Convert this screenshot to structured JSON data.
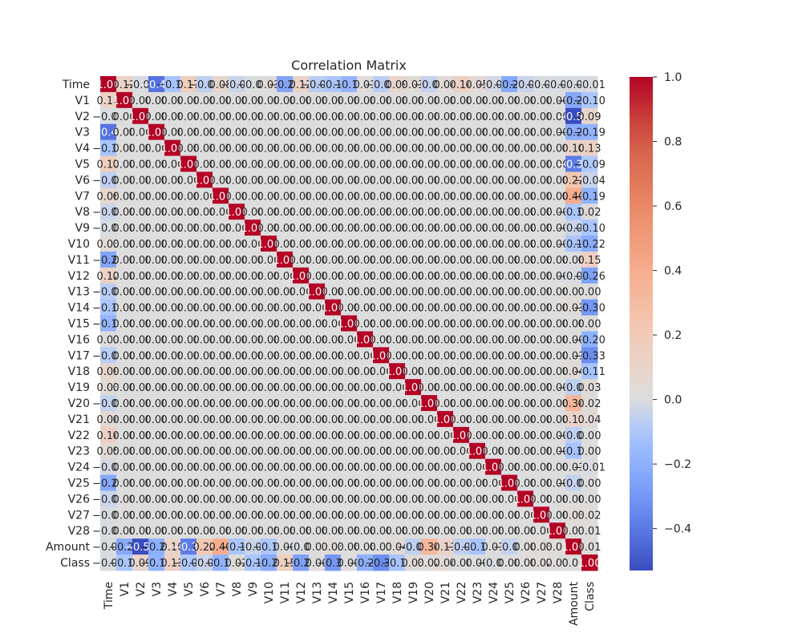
{
  "chart_data": {
    "type": "heatmap",
    "title": "Correlation Matrix",
    "labels": [
      "Time",
      "V1",
      "V2",
      "V3",
      "V4",
      "V5",
      "V6",
      "V7",
      "V8",
      "V9",
      "V10",
      "V11",
      "V12",
      "V13",
      "V14",
      "V15",
      "V16",
      "V17",
      "V18",
      "V19",
      "V20",
      "V21",
      "V22",
      "V23",
      "V24",
      "V25",
      "V26",
      "V27",
      "V28",
      "Amount",
      "Class"
    ],
    "matrix": [
      [
        1.0,
        0.12,
        -0.01,
        -0.42,
        -0.11,
        0.17,
        -0.06,
        0.08,
        -0.04,
        -0.01,
        0.03,
        -0.25,
        0.12,
        -0.07,
        -0.1,
        -0.18,
        0.01,
        -0.07,
        0.09,
        0.03,
        -0.05,
        0.04,
        0.14,
        0.05,
        -0.02,
        -0.23,
        -0.04,
        -0.01,
        -0.01,
        -0.01,
        -0.01
      ],
      [
        0.12,
        1.0,
        0.0,
        0.0,
        0.0,
        0.0,
        0.0,
        0.0,
        0.0,
        0.0,
        0.0,
        0.0,
        0.0,
        0.0,
        0.0,
        0.0,
        0.0,
        0.0,
        0.0,
        0.0,
        0.0,
        0.0,
        0.0,
        0.0,
        0.0,
        0.0,
        0.0,
        0.0,
        0.0,
        -0.23,
        -0.1
      ],
      [
        -0.01,
        0.0,
        1.0,
        0.0,
        0.0,
        0.0,
        0.0,
        0.0,
        0.0,
        0.0,
        0.0,
        0.0,
        0.0,
        0.0,
        0.0,
        0.0,
        0.0,
        0.0,
        0.0,
        0.0,
        0.0,
        0.0,
        0.0,
        0.0,
        0.0,
        0.0,
        0.0,
        0.0,
        0.0,
        -0.53,
        0.09
      ],
      [
        -0.42,
        0.0,
        0.0,
        1.0,
        0.0,
        0.0,
        0.0,
        0.0,
        0.0,
        0.0,
        0.0,
        0.0,
        0.0,
        0.0,
        0.0,
        0.0,
        0.0,
        0.0,
        0.0,
        0.0,
        0.0,
        0.0,
        0.0,
        0.0,
        0.0,
        0.0,
        0.0,
        0.0,
        0.0,
        -0.21,
        -0.19
      ],
      [
        -0.11,
        0.0,
        0.0,
        0.0,
        1.0,
        0.0,
        0.0,
        0.0,
        0.0,
        0.0,
        0.0,
        0.0,
        0.0,
        0.0,
        0.0,
        0.0,
        0.0,
        0.0,
        0.0,
        0.0,
        0.0,
        0.0,
        0.0,
        0.0,
        0.0,
        0.0,
        0.0,
        0.0,
        0.0,
        0.1,
        0.13
      ],
      [
        0.17,
        0.0,
        0.0,
        0.0,
        0.0,
        1.0,
        0.0,
        0.0,
        0.0,
        0.0,
        0.0,
        0.0,
        0.0,
        0.0,
        0.0,
        0.0,
        0.0,
        0.0,
        0.0,
        0.0,
        0.0,
        0.0,
        0.0,
        0.0,
        0.0,
        0.0,
        0.0,
        0.0,
        0.0,
        -0.39,
        -0.09
      ],
      [
        -0.06,
        0.0,
        0.0,
        0.0,
        0.0,
        0.0,
        1.0,
        0.0,
        0.0,
        0.0,
        0.0,
        0.0,
        0.0,
        0.0,
        0.0,
        0.0,
        0.0,
        0.0,
        0.0,
        0.0,
        0.0,
        0.0,
        0.0,
        0.0,
        0.0,
        0.0,
        0.0,
        0.0,
        0.0,
        0.22,
        -0.04
      ],
      [
        0.08,
        0.0,
        0.0,
        0.0,
        0.0,
        0.0,
        0.0,
        1.0,
        0.0,
        0.0,
        0.0,
        0.0,
        0.0,
        0.0,
        0.0,
        0.0,
        0.0,
        0.0,
        0.0,
        0.0,
        0.0,
        0.0,
        0.0,
        0.0,
        0.0,
        0.0,
        0.0,
        0.0,
        0.0,
        0.4,
        -0.19
      ],
      [
        -0.04,
        0.0,
        0.0,
        0.0,
        0.0,
        0.0,
        0.0,
        0.0,
        1.0,
        0.0,
        0.0,
        0.0,
        0.0,
        0.0,
        0.0,
        0.0,
        0.0,
        0.0,
        0.0,
        0.0,
        0.0,
        0.0,
        0.0,
        0.0,
        0.0,
        0.0,
        0.0,
        0.0,
        0.0,
        -0.1,
        0.02
      ],
      [
        -0.01,
        0.0,
        0.0,
        0.0,
        0.0,
        0.0,
        0.0,
        0.0,
        0.0,
        1.0,
        0.0,
        0.0,
        0.0,
        0.0,
        0.0,
        0.0,
        0.0,
        0.0,
        0.0,
        0.0,
        0.0,
        0.0,
        0.0,
        0.0,
        0.0,
        0.0,
        0.0,
        0.0,
        0.0,
        -0.04,
        -0.1
      ],
      [
        0.03,
        0.0,
        0.0,
        0.0,
        0.0,
        0.0,
        0.0,
        0.0,
        0.0,
        0.0,
        1.0,
        0.0,
        0.0,
        0.0,
        0.0,
        0.0,
        0.0,
        0.0,
        0.0,
        0.0,
        0.0,
        0.0,
        0.0,
        0.0,
        0.0,
        0.0,
        0.0,
        0.0,
        0.0,
        -0.1,
        -0.22
      ],
      [
        -0.25,
        0.0,
        0.0,
        0.0,
        0.0,
        0.0,
        0.0,
        0.0,
        0.0,
        0.0,
        0.0,
        1.0,
        0.0,
        0.0,
        0.0,
        0.0,
        0.0,
        0.0,
        0.0,
        0.0,
        0.0,
        0.0,
        0.0,
        0.0,
        0.0,
        0.0,
        0.0,
        0.0,
        0.0,
        0.0,
        0.15
      ],
      [
        0.12,
        0.0,
        0.0,
        0.0,
        0.0,
        0.0,
        0.0,
        0.0,
        0.0,
        0.0,
        0.0,
        0.0,
        1.0,
        0.0,
        0.0,
        0.0,
        0.0,
        0.0,
        0.0,
        0.0,
        0.0,
        0.0,
        0.0,
        0.0,
        0.0,
        0.0,
        0.0,
        0.0,
        0.0,
        -0.01,
        -0.26
      ],
      [
        -0.07,
        0.0,
        0.0,
        0.0,
        0.0,
        0.0,
        0.0,
        0.0,
        0.0,
        0.0,
        0.0,
        0.0,
        0.0,
        1.0,
        0.0,
        0.0,
        0.0,
        0.0,
        0.0,
        0.0,
        0.0,
        0.0,
        0.0,
        0.0,
        0.0,
        0.0,
        0.0,
        0.0,
        0.0,
        0.01,
        -0.0
      ],
      [
        -0.1,
        0.0,
        0.0,
        0.0,
        0.0,
        0.0,
        0.0,
        0.0,
        0.0,
        0.0,
        0.0,
        0.0,
        0.0,
        0.0,
        1.0,
        0.0,
        0.0,
        0.0,
        0.0,
        0.0,
        0.0,
        0.0,
        0.0,
        0.0,
        0.0,
        0.0,
        0.0,
        0.0,
        0.0,
        0.03,
        -0.3
      ],
      [
        -0.18,
        0.0,
        0.0,
        0.0,
        0.0,
        0.0,
        0.0,
        0.0,
        0.0,
        0.0,
        0.0,
        0.0,
        0.0,
        0.0,
        0.0,
        1.0,
        0.0,
        0.0,
        0.0,
        0.0,
        0.0,
        0.0,
        0.0,
        0.0,
        0.0,
        0.0,
        0.0,
        0.0,
        0.0,
        -0.0,
        -0.0
      ],
      [
        0.01,
        0.0,
        0.0,
        0.0,
        0.0,
        0.0,
        0.0,
        0.0,
        0.0,
        0.0,
        0.0,
        0.0,
        0.0,
        0.0,
        0.0,
        0.0,
        1.0,
        0.0,
        0.0,
        0.0,
        0.0,
        0.0,
        0.0,
        0.0,
        0.0,
        0.0,
        0.0,
        0.0,
        0.0,
        -0.0,
        -0.2
      ],
      [
        -0.07,
        0.0,
        0.0,
        0.0,
        0.0,
        0.0,
        0.0,
        0.0,
        0.0,
        0.0,
        0.0,
        0.0,
        0.0,
        0.0,
        0.0,
        0.0,
        0.0,
        1.0,
        0.0,
        0.0,
        0.0,
        0.0,
        0.0,
        0.0,
        0.0,
        0.0,
        0.0,
        0.0,
        0.0,
        0.01,
        -0.33
      ],
      [
        0.09,
        0.0,
        0.0,
        0.0,
        0.0,
        0.0,
        0.0,
        0.0,
        0.0,
        0.0,
        0.0,
        0.0,
        0.0,
        0.0,
        0.0,
        0.0,
        0.0,
        0.0,
        1.0,
        0.0,
        0.0,
        0.0,
        0.0,
        0.0,
        0.0,
        0.0,
        0.0,
        0.0,
        0.0,
        0.04,
        -0.11
      ],
      [
        0.03,
        0.0,
        0.0,
        0.0,
        0.0,
        0.0,
        0.0,
        0.0,
        0.0,
        0.0,
        0.0,
        0.0,
        0.0,
        0.0,
        0.0,
        0.0,
        0.0,
        0.0,
        0.0,
        1.0,
        0.0,
        0.0,
        0.0,
        0.0,
        0.0,
        0.0,
        0.0,
        0.0,
        0.0,
        -0.06,
        0.03
      ],
      [
        -0.05,
        0.0,
        0.0,
        0.0,
        0.0,
        0.0,
        0.0,
        0.0,
        0.0,
        0.0,
        0.0,
        0.0,
        0.0,
        0.0,
        0.0,
        0.0,
        0.0,
        0.0,
        0.0,
        0.0,
        1.0,
        0.0,
        0.0,
        0.0,
        0.0,
        0.0,
        0.0,
        0.0,
        0.0,
        0.34,
        0.02
      ],
      [
        0.04,
        0.0,
        0.0,
        0.0,
        0.0,
        0.0,
        0.0,
        0.0,
        0.0,
        0.0,
        0.0,
        0.0,
        0.0,
        0.0,
        0.0,
        0.0,
        0.0,
        0.0,
        0.0,
        0.0,
        0.0,
        1.0,
        0.0,
        0.0,
        0.0,
        0.0,
        0.0,
        0.0,
        0.0,
        0.11,
        0.04
      ],
      [
        0.14,
        0.0,
        0.0,
        0.0,
        0.0,
        0.0,
        0.0,
        0.0,
        0.0,
        0.0,
        0.0,
        0.0,
        0.0,
        0.0,
        0.0,
        0.0,
        0.0,
        0.0,
        0.0,
        0.0,
        0.0,
        0.0,
        1.0,
        0.0,
        0.0,
        0.0,
        0.0,
        0.0,
        0.0,
        -0.06,
        0.0
      ],
      [
        0.05,
        0.0,
        0.0,
        0.0,
        0.0,
        0.0,
        0.0,
        0.0,
        0.0,
        0.0,
        0.0,
        0.0,
        0.0,
        0.0,
        0.0,
        0.0,
        0.0,
        0.0,
        0.0,
        0.0,
        0.0,
        0.0,
        0.0,
        1.0,
        0.0,
        0.0,
        0.0,
        0.0,
        0.0,
        -0.11,
        -0.0
      ],
      [
        -0.02,
        0.0,
        0.0,
        0.0,
        0.0,
        0.0,
        0.0,
        0.0,
        0.0,
        0.0,
        0.0,
        0.0,
        0.0,
        0.0,
        0.0,
        0.0,
        0.0,
        0.0,
        0.0,
        0.0,
        0.0,
        0.0,
        0.0,
        0.0,
        1.0,
        0.0,
        0.0,
        0.0,
        0.0,
        0.01,
        -0.01
      ],
      [
        -0.23,
        0.0,
        0.0,
        0.0,
        0.0,
        0.0,
        0.0,
        0.0,
        0.0,
        0.0,
        0.0,
        0.0,
        0.0,
        0.0,
        0.0,
        0.0,
        0.0,
        0.0,
        0.0,
        0.0,
        0.0,
        0.0,
        0.0,
        0.0,
        0.0,
        1.0,
        0.0,
        0.0,
        0.0,
        -0.05,
        0.0
      ],
      [
        -0.04,
        0.0,
        0.0,
        0.0,
        0.0,
        0.0,
        0.0,
        0.0,
        0.0,
        0.0,
        0.0,
        0.0,
        0.0,
        0.0,
        0.0,
        0.0,
        0.0,
        0.0,
        0.0,
        0.0,
        0.0,
        0.0,
        0.0,
        0.0,
        0.0,
        0.0,
        1.0,
        0.0,
        0.0,
        -0.0,
        0.0
      ],
      [
        -0.01,
        0.0,
        0.0,
        0.0,
        0.0,
        0.0,
        0.0,
        0.0,
        0.0,
        0.0,
        0.0,
        0.0,
        0.0,
        0.0,
        0.0,
        0.0,
        0.0,
        0.0,
        0.0,
        0.0,
        0.0,
        0.0,
        0.0,
        0.0,
        0.0,
        0.0,
        0.0,
        1.0,
        0.0,
        0.03,
        0.02
      ],
      [
        -0.01,
        0.0,
        0.0,
        0.0,
        0.0,
        0.0,
        0.0,
        0.0,
        0.0,
        0.0,
        0.0,
        0.0,
        0.0,
        0.0,
        0.0,
        0.0,
        0.0,
        0.0,
        0.0,
        0.0,
        0.0,
        0.0,
        0.0,
        0.0,
        0.0,
        0.0,
        0.0,
        0.0,
        1.0,
        0.01,
        0.01
      ],
      [
        -0.01,
        -0.23,
        -0.53,
        -0.21,
        0.1,
        -0.39,
        0.22,
        0.4,
        -0.1,
        -0.04,
        -0.1,
        0.0,
        -0.01,
        0.01,
        0.03,
        -0.0,
        -0.0,
        0.01,
        0.04,
        -0.06,
        0.34,
        0.11,
        -0.06,
        -0.11,
        0.01,
        -0.05,
        -0.0,
        0.03,
        0.01,
        1.0,
        0.01
      ],
      [
        -0.01,
        -0.1,
        0.09,
        -0.19,
        0.13,
        -0.09,
        -0.04,
        -0.19,
        0.02,
        -0.1,
        -0.22,
        0.15,
        -0.26,
        -0.0,
        -0.3,
        -0.0,
        -0.2,
        -0.33,
        -0.11,
        0.03,
        0.02,
        0.04,
        0.0,
        -0.0,
        -0.01,
        0.0,
        0.0,
        0.02,
        0.01,
        0.01,
        1.0
      ]
    ],
    "colorbar": {
      "min": -0.53,
      "max": 1.0,
      "ticks": [
        "1.0",
        "0.8",
        "0.6",
        "0.4",
        "0.2",
        "0.0",
        "−0.2",
        "−0.4"
      ],
      "colormap": "coolwarm"
    }
  }
}
